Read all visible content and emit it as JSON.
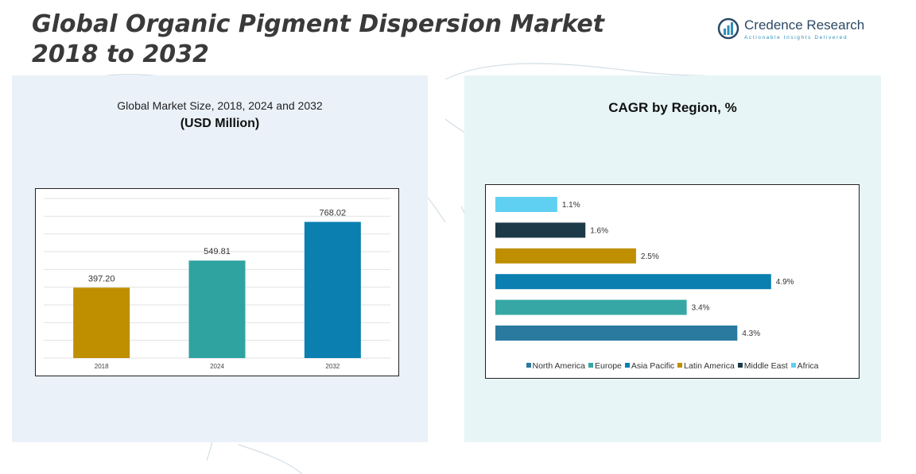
{
  "header": {
    "title_line1": "Global Organic Pigment Dispersion Market",
    "title_line2": "2018 to 2032"
  },
  "logo": {
    "icon": "credence-research-logo-icon",
    "brand": "Credence Research",
    "tagline": "Actionable Insights Delivered"
  },
  "left_panel": {
    "subtitle": "Global Market Size, 2018, 2024 and 2032",
    "unit": "(USD Million)"
  },
  "right_panel": {
    "title": "CAGR by Region, %"
  },
  "colors": {
    "bar_2018": "#bf8f00",
    "bar_2024": "#2fa3a0",
    "bar_2032": "#0a7fb0",
    "north_america": "#2a7aa0",
    "europe": "#36a7a4",
    "asia_pacific": "#0a7fb0",
    "latin_america": "#bf8f00",
    "middle_east": "#1c3a48",
    "africa": "#5fcff2"
  },
  "chart_data": [
    {
      "type": "bar",
      "title": "Global Market Size, 2018, 2024 and 2032",
      "ylabel": "(USD Million)",
      "categories": [
        "2018",
        "2024",
        "2032"
      ],
      "values": [
        397.2,
        549.81,
        768.02
      ],
      "data_labels": [
        "397.20",
        "549.81",
        "768.02"
      ],
      "ylim": [
        0,
        900
      ],
      "grid": true
    },
    {
      "type": "bar",
      "orientation": "horizontal",
      "title": "CAGR by Region, %",
      "categories": [
        "Africa",
        "Middle East",
        "Latin America",
        "Asia Pacific",
        "Europe",
        "North America"
      ],
      "values": [
        1.1,
        1.6,
        2.5,
        4.9,
        3.4,
        4.3
      ],
      "data_labels": [
        "1.1%",
        "1.6%",
        "2.5%",
        "4.9%",
        "3.4%",
        "4.3%"
      ],
      "xlim": [
        0,
        5.2
      ],
      "legend": {
        "position": "bottom",
        "entries": [
          "North America",
          "Europe",
          "Asia Pacific",
          "Latin America",
          "Middle East",
          "Africa"
        ]
      }
    }
  ]
}
